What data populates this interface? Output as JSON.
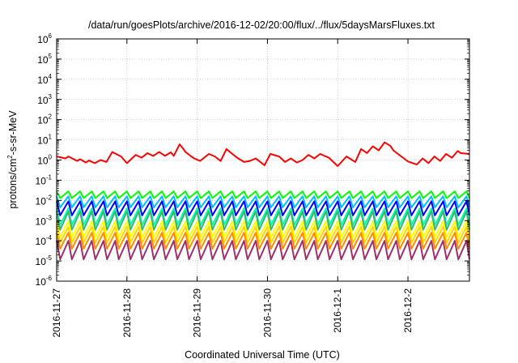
{
  "chart_data": {
    "type": "line",
    "title": "/data/run/goesPlots/archive/2016-12-02/20:00/flux/../flux/5daysMarsFluxes.txt",
    "xlabel": "Coordinated Universal Time (UTC)",
    "ylabel": "protons/cm2-s-sr-MeV",
    "ylabel_parts": {
      "pre": "protons/cm",
      "sup": "2",
      "post": "-s-sr-MeV"
    },
    "yscale": "log",
    "ylim": [
      1e-06,
      1000000.0
    ],
    "y_ticks": [
      {
        "base": "10",
        "exp": "6"
      },
      {
        "base": "10",
        "exp": "5"
      },
      {
        "base": "10",
        "exp": "4"
      },
      {
        "base": "10",
        "exp": "3"
      },
      {
        "base": "10",
        "exp": "2"
      },
      {
        "base": "10",
        "exp": "1"
      },
      {
        "base": "10",
        "exp": "0"
      },
      {
        "base": "10",
        "exp": "-1"
      },
      {
        "base": "10",
        "exp": "-2"
      },
      {
        "base": "10",
        "exp": "-3"
      },
      {
        "base": "10",
        "exp": "-4"
      },
      {
        "base": "10",
        "exp": "-5"
      },
      {
        "base": "10",
        "exp": "-6"
      }
    ],
    "x_ticks": [
      "2016-11-27",
      "2016-11-28",
      "2016-11-29",
      "2016-11-30",
      "2016-12-1",
      "2016-12-2"
    ],
    "xlim": [
      "2016-11-27 00:00",
      "2016-12-02 21:00"
    ],
    "grid": true,
    "legend": "none",
    "series": [
      {
        "color": "#ff0000",
        "linewidth": 2,
        "sawtooth": false,
        "x": [
          "2016-11-27 00:00",
          "2016-11-27 03:00",
          "2016-11-27 04:00",
          "2016-11-27 07:00",
          "2016-11-27 08:00",
          "2016-11-27 10:00",
          "2016-11-27 11:00",
          "2016-11-27 13:00",
          "2016-11-27 15:00",
          "2016-11-27 17:00",
          "2016-11-27 19:00",
          "2016-11-27 22:00",
          "2016-11-28 00:00",
          "2016-11-28 03:00",
          "2016-11-28 05:00",
          "2016-11-28 07:00",
          "2016-11-28 09:00",
          "2016-11-28 11:00",
          "2016-11-28 13:00",
          "2016-11-28 15:00",
          "2016-11-28 16:00",
          "2016-11-28 18:00",
          "2016-11-28 19:00",
          "2016-11-28 20:00",
          "2016-11-28 22:00",
          "2016-11-28 23:00",
          "2016-11-29 01:00",
          "2016-11-29 04:00",
          "2016-11-29 06:00",
          "2016-11-29 08:00",
          "2016-11-29 10:00",
          "2016-11-29 12:00",
          "2016-11-29 14:00",
          "2016-11-29 16:00",
          "2016-11-29 18:00",
          "2016-11-29 20:00",
          "2016-11-29 23:00",
          "2016-11-30 01:00",
          "2016-11-30 04:00",
          "2016-11-30 06:00",
          "2016-11-30 08:00",
          "2016-11-30 10:00",
          "2016-11-30 12:00",
          "2016-11-30 14:00",
          "2016-11-30 16:00",
          "2016-11-30 18:00",
          "2016-11-30 21:00",
          "2016-12-01 00:00",
          "2016-12-01 03:00",
          "2016-12-01 06:00",
          "2016-12-01 08:00",
          "2016-12-01 10:00",
          "2016-12-01 12:00",
          "2016-12-01 14:00",
          "2016-12-01 16:00",
          "2016-12-01 18:00",
          "2016-12-01 19:00",
          "2016-12-01 21:00",
          "2016-12-02 00:00",
          "2016-12-02 03:00",
          "2016-12-02 05:00",
          "2016-12-02 07:00",
          "2016-12-02 09:00",
          "2016-12-02 11:00",
          "2016-12-02 13:00",
          "2016-12-02 15:00",
          "2016-12-02 17:00",
          "2016-12-02 18:00",
          "2016-12-02 21:00"
        ],
        "y": [
          1.5,
          1.2,
          1.5,
          0.9,
          1.1,
          0.75,
          0.95,
          0.7,
          1.0,
          0.8,
          2.5,
          1.5,
          0.7,
          1.8,
          1.3,
          2.2,
          1.6,
          2.5,
          1.6,
          2.4,
          1.6,
          6.0,
          4.0,
          2.5,
          1.5,
          1.2,
          0.9,
          2.0,
          1.5,
          0.9,
          3.5,
          2.0,
          1.2,
          0.8,
          0.9,
          1.2,
          0.55,
          2.0,
          1.5,
          0.8,
          1.2,
          0.75,
          1.0,
          1.8,
          1.2,
          2.0,
          1.3,
          0.5,
          1.5,
          0.8,
          3.5,
          2.2,
          4.8,
          3.0,
          7.5,
          5.0,
          3.0,
          1.8,
          0.85,
          0.6,
          1.2,
          0.7,
          1.5,
          0.9,
          2.0,
          1.3,
          2.8,
          2.2,
          2.0
        ]
      },
      {
        "color": "#00ff00",
        "linewidth": 2,
        "sawtooth": true,
        "peak": 0.028,
        "trough": 0.013,
        "drop": 0.3
      },
      {
        "color": "#00bfff",
        "linewidth": 2,
        "sawtooth": true,
        "peak": 0.016,
        "trough": 0.0045,
        "drop": 0.3
      },
      {
        "color": "#0000ff",
        "linewidth": 2,
        "sawtooth": true,
        "peak": 0.009,
        "trough": 0.0018,
        "drop": 0.3
      },
      {
        "color": "#00ffaa",
        "linewidth": 2,
        "sawtooth": true,
        "peak": 0.004,
        "trough": 0.0006,
        "drop": 0.3
      },
      {
        "color": "#3cb371",
        "linewidth": 2,
        "sawtooth": true,
        "peak": 0.0028,
        "trough": 0.00035,
        "drop": 0.3
      },
      {
        "color": "#ffff00",
        "linewidth": 2,
        "sawtooth": true,
        "peak": 0.0009,
        "trough": 0.00015,
        "drop": 0.3
      },
      {
        "color": "#ffd700",
        "linewidth": 2,
        "sawtooth": true,
        "peak": 0.0005,
        "trough": 8e-05,
        "drop": 0.3
      },
      {
        "color": "#ff8c00",
        "linewidth": 2,
        "sawtooth": true,
        "peak": 0.00025,
        "trough": 4e-05,
        "drop": 0.3
      },
      {
        "color": "#a0306a",
        "linewidth": 2,
        "sawtooth": true,
        "peak": 0.0001,
        "trough": 1.2e-05,
        "drop": 0.3
      }
    ],
    "sawtooth_period_hours": 4
  }
}
